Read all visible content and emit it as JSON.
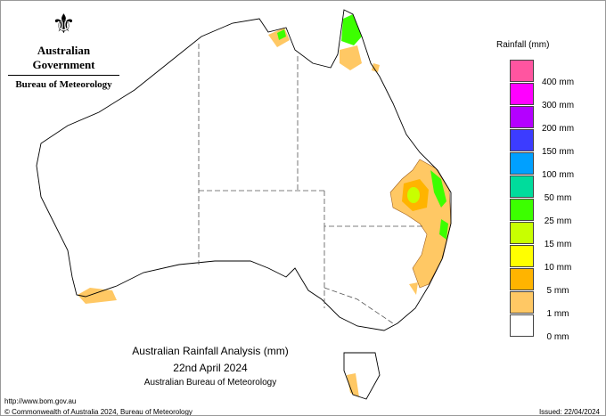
{
  "header": {
    "org": "Australian Government",
    "agency": "Bureau of Meteorology"
  },
  "map": {
    "title": "Australian Rainfall Analysis (mm)",
    "date": "22nd April 2024",
    "source": "Australian Bureau of Meteorology",
    "rain_areas": [
      "Cape York Peninsula",
      "Top End (Darwin)",
      "south-east Queensland",
      "north-east New South Wales",
      "south-west Western Australia",
      "western Tasmania"
    ]
  },
  "legend": {
    "title": "Rainfall (mm)",
    "bands": [
      {
        "color": "#ff55a0",
        "label": "400 mm"
      },
      {
        "color": "#ff00ff",
        "label": "300 mm"
      },
      {
        "color": "#b400ff",
        "label": "200 mm"
      },
      {
        "color": "#3c3cff",
        "label": "150 mm"
      },
      {
        "color": "#00a0ff",
        "label": "100 mm"
      },
      {
        "color": "#00dc9c",
        "label": "50 mm"
      },
      {
        "color": "#3cff00",
        "label": "25 mm"
      },
      {
        "color": "#c8ff00",
        "label": "15 mm"
      },
      {
        "color": "#ffff00",
        "label": "10 mm"
      },
      {
        "color": "#ffb400",
        "label": "5 mm"
      },
      {
        "color": "#ffc864",
        "label": "1 mm"
      },
      {
        "color": "#ffffff",
        "label": "0 mm"
      }
    ]
  },
  "footer": {
    "url": "http://www.bom.gov.au",
    "copyright": "© Commonwealth of Australia 2024, Bureau of Meteorology",
    "issued": "Issued: 22/04/2024"
  }
}
